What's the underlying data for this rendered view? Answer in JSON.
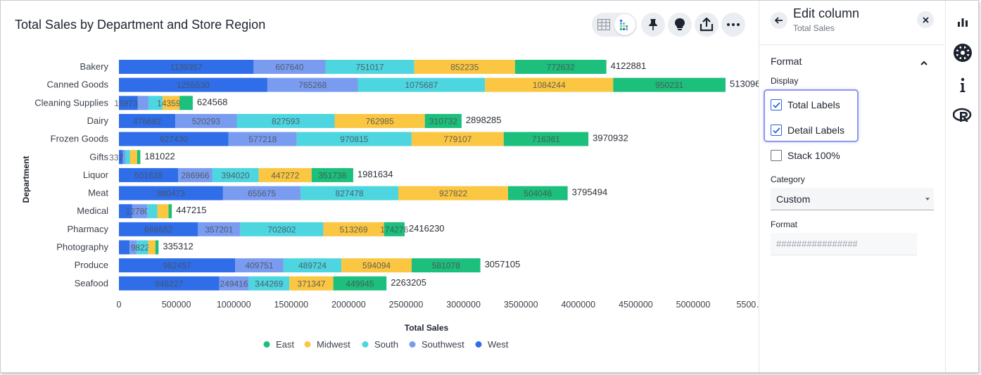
{
  "chart": {
    "title": "Total Sales by Department and Store Region"
  },
  "toolbar": {
    "icons": [
      "table-view-icon",
      "chart-view-icon",
      "pin-icon",
      "lightbulb-icon",
      "share-icon",
      "more-icon"
    ]
  },
  "panel": {
    "title": "Edit column",
    "subtitle": "Total Sales",
    "section": "Format",
    "display_label": "Display",
    "options": {
      "total_labels": {
        "label": "Total Labels",
        "checked": true
      },
      "detail_labels": {
        "label": "Detail Labels",
        "checked": true
      },
      "stack_100": {
        "label": "Stack 100%",
        "checked": false
      }
    },
    "category_label": "Category",
    "category_value": "Custom",
    "format_label": "Format",
    "format_placeholder": "################"
  },
  "rail": {
    "icons": [
      "chart-settings-icon",
      "gear-icon",
      "info-icon",
      "r-analysis-icon"
    ]
  },
  "colors": {
    "East": "#1cbf7b",
    "Midwest": "#fbc641",
    "South": "#4dd5e0",
    "Southwest": "#7a9cf0",
    "West": "#2f6ee8",
    "accent": "#2e63d9"
  },
  "chart_data": {
    "type": "bar",
    "orientation": "horizontal",
    "stacked": true,
    "xlabel": "Total Sales",
    "ylabel": "Department",
    "xlim": [
      0,
      5500000
    ],
    "x_ticks": [
      "0",
      "500000",
      "1000000",
      "1500000",
      "2000000",
      "2500000",
      "3000000",
      "3500000",
      "4000000",
      "4500000",
      "5000000",
      "5500…"
    ],
    "legend_position": "bottom",
    "legend": [
      "East",
      "Midwest",
      "South",
      "Southwest",
      "West"
    ],
    "categories": [
      "Bakery",
      "Canned Goods",
      "Cleaning Supplies",
      "Dairy",
      "Frozen Goods",
      "Gifts",
      "Liquor",
      "Meat",
      "Medical",
      "Pharmacy",
      "Photography",
      "Produce",
      "Seafood"
    ],
    "totals": [
      4122881,
      5130960,
      624568,
      2898285,
      3970932,
      181022,
      1981634,
      3795494,
      447215,
      2416230,
      335312,
      3057105,
      2263205
    ],
    "series": [
      {
        "name": "West",
        "values": [
          1139357,
          1255530,
          159738,
          476682,
          927430,
          33763,
          501638,
          880473,
          112000,
          668682,
          90000,
          982457,
          848227
        ]
      },
      {
        "name": "Southwest",
        "values": [
          607640,
          765268,
          90000,
          520293,
          577218,
          20000,
          286966,
          655675,
          127807,
          357201,
          60000,
          409751,
          249416
        ]
      },
      {
        "name": "South",
        "values": [
          751017,
          1075687,
          120000,
          827593,
          970815,
          40000,
          394020,
          827478,
          85000,
          702802,
          98221,
          489724,
          344269
        ]
      },
      {
        "name": "Midwest",
        "values": [
          852235,
          1084244,
          143592,
          762985,
          779107,
          60000,
          447272,
          927822,
          95000,
          513269,
          60000,
          594094,
          371347
        ]
      },
      {
        "name": "East",
        "values": [
          772632,
          950231,
          111238,
          310732,
          716361,
          27259,
          351738,
          504046,
          27408,
          174276,
          27091,
          581078,
          449945
        ]
      }
    ],
    "detail_labels_shown": [
      [
        "1139357",
        "607640",
        "751017",
        "852235",
        "772632"
      ],
      [
        "1255530",
        "765268",
        "1075687",
        "1084244",
        "950231"
      ],
      [
        "159738",
        "",
        "",
        "143592",
        ""
      ],
      [
        "476682",
        "520293",
        "827593",
        "762985",
        "310732"
      ],
      [
        "927430",
        "577218",
        "970815",
        "779107",
        "716361"
      ],
      [
        "33763",
        "",
        "",
        "",
        ""
      ],
      [
        "501638",
        "286966",
        "394020",
        "447272",
        "351738"
      ],
      [
        "880473",
        "655675",
        "827478",
        "927822",
        "504046"
      ],
      [
        "",
        "127807",
        "",
        "",
        ""
      ],
      [
        "668682",
        "357201",
        "702802",
        "513269",
        "174276"
      ],
      [
        "",
        "",
        "98221",
        "",
        ""
      ],
      [
        "982457",
        "409751",
        "489724",
        "594094",
        "581078"
      ],
      [
        "848227",
        "249416",
        "344269",
        "371347",
        "449945"
      ]
    ]
  }
}
